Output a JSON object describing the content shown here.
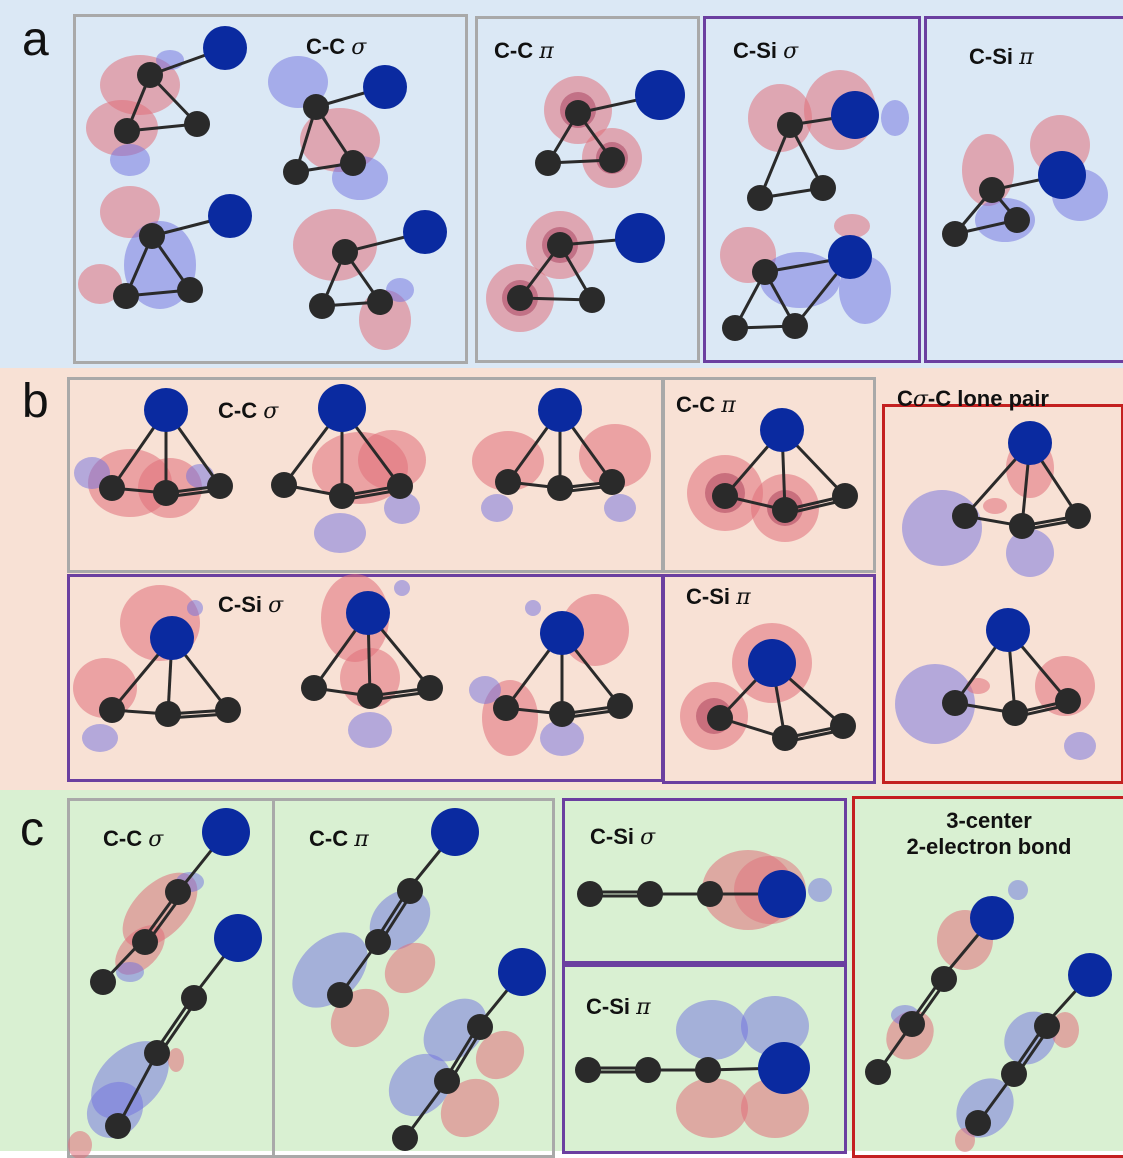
{
  "colors": {
    "panel_a_bg": "#dbe8f5",
    "panel_b_bg": "#f8e1d5",
    "panel_c_bg": "#d9f0d2",
    "box_gray": "#a9a9a9",
    "box_purple": "#6b3fa0",
    "box_red": "#c42020",
    "carbon": "#2a2a2a",
    "silicon": "#0a2aa0",
    "orbital_positive": "#e0707a",
    "orbital_negative": "#6f6fe0"
  },
  "panels": {
    "a": {
      "label": "a",
      "groups": {
        "cc_sigma": {
          "bond": "C-C",
          "symbol": "σ"
        },
        "cc_pi": {
          "bond": "C-C",
          "symbol": "π"
        },
        "csi_sigma": {
          "bond": "C-Si",
          "symbol": "σ"
        },
        "csi_pi": {
          "bond": "C-Si",
          "symbol": "π"
        }
      }
    },
    "b": {
      "label": "b",
      "groups": {
        "cc_sigma": {
          "bond": "C-C",
          "symbol": "σ"
        },
        "cc_pi": {
          "bond": "C-C",
          "symbol": "π"
        },
        "lone_pair": {
          "pre": "C",
          "symbol": "σ",
          "post": "-C lone pair"
        },
        "csi_sigma": {
          "bond": "C-Si",
          "symbol": "σ"
        },
        "csi_pi": {
          "bond": "C-Si",
          "symbol": "π"
        }
      }
    },
    "c": {
      "label": "c",
      "groups": {
        "cc_sigma": {
          "bond": "C-C",
          "symbol": "σ"
        },
        "cc_pi": {
          "bond": "C-C",
          "symbol": "π"
        },
        "csi_sigma": {
          "bond": "C-Si",
          "symbol": "σ"
        },
        "csi_pi": {
          "bond": "C-Si",
          "symbol": "π"
        },
        "three_center": {
          "line1": "3-center",
          "line2": "2-electron bond"
        }
      }
    }
  }
}
